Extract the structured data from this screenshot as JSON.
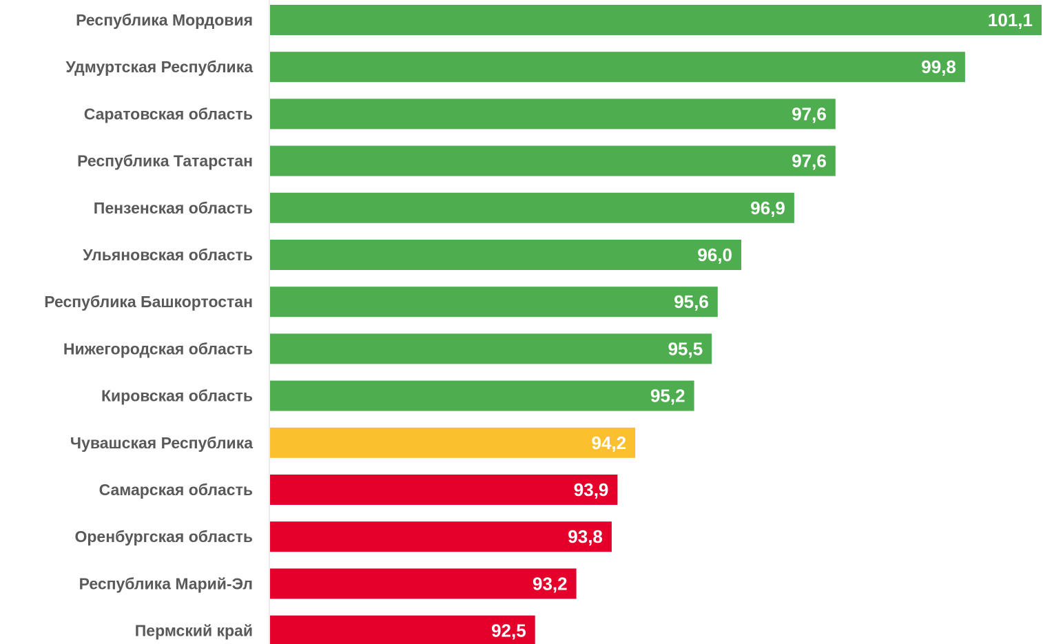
{
  "chart_data": {
    "type": "bar",
    "orientation": "horizontal",
    "title": "",
    "xlabel": "",
    "ylabel": "",
    "categories": [
      "Республика Мордовия",
      "Удмуртская Республика",
      "Саратовская область",
      "Республика Татарстан",
      "Пензенская область",
      "Ульяновская область",
      "Республика Башкортостан",
      "Нижегородская область",
      "Кировская область",
      "Чувашская Республика",
      "Самарская область",
      "Оренбургская область",
      "Республика Марий-Эл",
      "Пермский край"
    ],
    "values": [
      101.1,
      99.8,
      97.6,
      97.6,
      96.9,
      96.0,
      95.6,
      95.5,
      95.2,
      94.2,
      93.9,
      93.8,
      93.2,
      92.5
    ],
    "value_labels": [
      "101,1",
      "99,8",
      "97,6",
      "97,6",
      "96,9",
      "96,0",
      "95,6",
      "95,5",
      "95,2",
      "94,2",
      "93,9",
      "93,8",
      "93,2",
      "92,5"
    ],
    "bar_colors": [
      "#4eae4f",
      "#4eae4f",
      "#4eae4f",
      "#4eae4f",
      "#4eae4f",
      "#4eae4f",
      "#4eae4f",
      "#4eae4f",
      "#4eae4f",
      "#fbc02d",
      "#e4002b",
      "#e4002b",
      "#e4002b",
      "#e4002b"
    ],
    "colors": {
      "green": "#4eae4f",
      "yellow": "#fbc02d",
      "red": "#e4002b",
      "category_text": "#595959",
      "value_text": "#ffffff",
      "axis": "#d9d9d9"
    },
    "xlim": [
      88,
      101.1
    ],
    "grid": false,
    "legend": "none"
  }
}
